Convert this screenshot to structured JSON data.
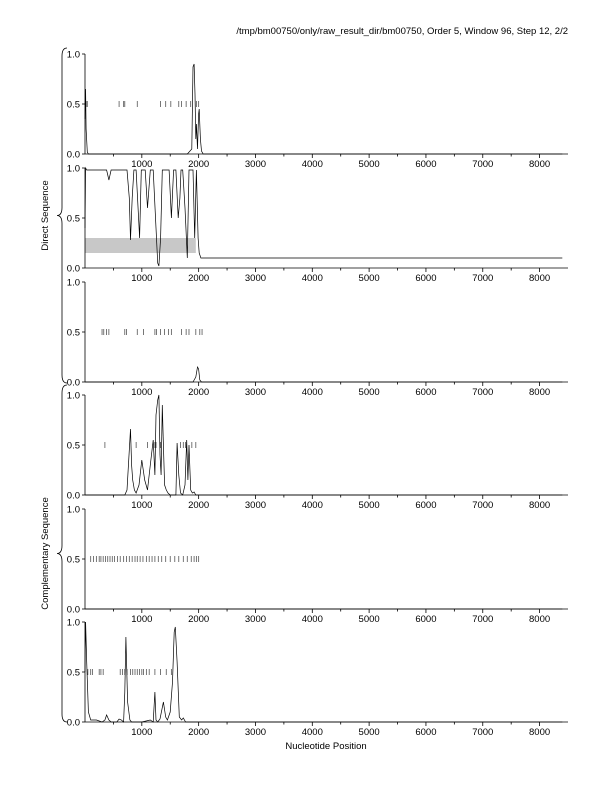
{
  "page": {
    "title": "/tmp/bm00750/only/raw_result_dir/bm00750, Order 5, Window 96, Step 12, 2/2"
  },
  "groups": [
    {
      "label": "Direct Sequence",
      "panels": [
        0,
        1,
        2
      ]
    },
    {
      "label": "Complementary Sequence",
      "panels": [
        3,
        4,
        5
      ]
    }
  ],
  "chart_data": {
    "type": "line",
    "xlabel": "Nucleotide Position",
    "xlim": [
      0,
      8500
    ],
    "ylim": [
      0,
      1
    ],
    "x_ticks": [
      1000,
      2000,
      3000,
      4000,
      5000,
      6000,
      7000,
      8000
    ],
    "x_tick_labels": [
      "1000",
      "2000",
      "3000",
      "4000",
      "5000",
      "6000",
      "7000",
      "8000"
    ],
    "y_ticks": [
      0.0,
      0.5,
      1.0
    ],
    "y_tick_labels": [
      "0.0",
      "0.5",
      "1.0"
    ],
    "panels": [
      {
        "series": [
          {
            "x": [
              0,
              10,
              20,
              40,
              60,
              80,
              100,
              600,
              1000,
              1500,
              1800,
              1880,
              1900,
              1920,
              1935,
              1950,
              1960,
              1980,
              2000,
              2010,
              2030,
              2050,
              2080,
              2100,
              8400
            ],
            "y": [
              0.35,
              0.65,
              0.25,
              0.02,
              0,
              0,
              0,
              0,
              0,
              0,
              0,
              0.05,
              0.87,
              0.9,
              0.6,
              0.15,
              0.3,
              0.05,
              0.4,
              0.45,
              0.15,
              0.03,
              0,
              0,
              0
            ]
          }
        ],
        "marks": [
          20,
          40,
          600,
          680,
          700,
          920,
          1330,
          1420,
          1510,
          1650,
          1700,
          1780,
          1860,
          1960,
          2000
        ]
      },
      {
        "series": [
          {
            "x": [
              0,
              10,
              30,
              50,
              200,
              280,
              380,
              420,
              460,
              600,
              700,
              740,
              780,
              800,
              830,
              860,
              900,
              960,
              990,
              1020,
              1060,
              1100,
              1150,
              1200,
              1250,
              1280,
              1300,
              1330,
              1360,
              1420,
              1480,
              1520,
              1560,
              1600,
              1640,
              1670,
              1690,
              1720,
              1760,
              1800,
              1830,
              1860,
              1900,
              1930,
              1960,
              1990,
              2010,
              2040,
              8400
            ],
            "y": [
              0.4,
              1.0,
              0.98,
              0.98,
              0.98,
              0.98,
              0.98,
              0.88,
              0.98,
              0.98,
              0.98,
              0.98,
              0.7,
              0.28,
              0.7,
              0.98,
              0.98,
              0.3,
              0.98,
              0.98,
              0.98,
              0.6,
              0.98,
              0.98,
              0.4,
              0.05,
              0.02,
              0.3,
              0.98,
              0.98,
              0.98,
              0.5,
              0.98,
              0.98,
              0.5,
              0.7,
              0.98,
              0.98,
              0.6,
              0.1,
              0.98,
              0.98,
              0.98,
              0.3,
              0.98,
              0.3,
              0.15,
              0.1,
              0.1
            ]
          }
        ],
        "marks": [],
        "band": {
          "x": [
            0,
            1950
          ],
          "y": [
            0.15,
            0.3
          ]
        }
      },
      {
        "series": [
          {
            "x": [
              0,
              1900,
              1950,
              1980,
              2000,
              2020,
              2050,
              8400
            ],
            "y": [
              0,
              0,
              0.05,
              0.15,
              0.13,
              0.02,
              0,
              0
            ]
          }
        ],
        "marks": [
          300,
          330,
          380,
          420,
          700,
          730,
          920,
          1030,
          1230,
          1260,
          1330,
          1400,
          1470,
          1520,
          1700,
          1780,
          1830,
          1950,
          2020,
          2060
        ]
      },
      {
        "series": [
          {
            "x": [
              0,
              700,
              740,
              780,
              800,
              820,
              840,
              870,
              900,
              950,
              1000,
              1050,
              1100,
              1150,
              1200,
              1230,
              1250,
              1280,
              1300,
              1320,
              1340,
              1360,
              1380,
              1400,
              1430,
              1460,
              1500,
              1550,
              1600,
              1620,
              1650,
              1680,
              1720,
              1760,
              1790,
              1810,
              1830,
              1860,
              1890,
              1920,
              1950,
              2000,
              8400
            ],
            "y": [
              0,
              0,
              0.05,
              0.45,
              0.66,
              0.3,
              0.15,
              0.05,
              0.02,
              0.1,
              0.35,
              0.15,
              0.05,
              0.3,
              0.55,
              0.2,
              0.8,
              0.95,
              1.0,
              0.4,
              0.2,
              0.9,
              0.5,
              0.1,
              0.05,
              0.02,
              0,
              0,
              0,
              0.52,
              0.2,
              0.02,
              0,
              0.1,
              0.55,
              0.15,
              0.5,
              0.05,
              0.02,
              0.03,
              0,
              0,
              0
            ]
          }
        ],
        "marks": [
          350,
          900,
          1100,
          1230,
          1250,
          1330,
          1680,
          1730,
          1770,
          1880,
          1950
        ]
      },
      {
        "series": [
          {
            "x": [
              0,
              8400
            ],
            "y": [
              0,
              0
            ]
          }
        ],
        "marks": [
          100,
          150,
          200,
          250,
          280,
          320,
          360,
          400,
          440,
          480,
          520,
          570,
          620,
          680,
          730,
          780,
          830,
          880,
          920,
          970,
          1020,
          1080,
          1130,
          1180,
          1230,
          1290,
          1350,
          1420,
          1500,
          1580,
          1650,
          1730,
          1800,
          1870,
          1920,
          1960,
          2000
        ]
      },
      {
        "series": [
          {
            "x": [
              0,
              10,
              30,
              60,
              100,
              200,
              300,
              350,
              380,
              420,
              460,
              560,
              600,
              640,
              680,
              700,
              720,
              750,
              790,
              820,
              1000,
              1150,
              1200,
              1230,
              1250,
              1280,
              1320,
              1380,
              1420,
              1450,
              1500,
              1540,
              1570,
              1590,
              1620,
              1660,
              1700,
              1730,
              1770,
              8400
            ],
            "y": [
              0.5,
              1.0,
              0.6,
              0.1,
              0.02,
              0.02,
              0,
              0.02,
              0.07,
              0.02,
              0,
              0,
              0.03,
              0.02,
              0,
              0.3,
              0.85,
              0.2,
              0.02,
              0,
              0,
              0.02,
              0,
              0.3,
              0.02,
              0,
              0.03,
              0.2,
              0.05,
              0.02,
              0.1,
              0.4,
              0.9,
              0.95,
              0.6,
              0.05,
              0.02,
              0.04,
              0,
              0
            ]
          }
        ],
        "marks": [
          50,
          100,
          130,
          250,
          280,
          320,
          620,
          660,
          700,
          740,
          800,
          840,
          880,
          920,
          960,
          1000,
          1030,
          1080,
          1130,
          1230,
          1330,
          1430,
          1520
        ]
      }
    ]
  }
}
